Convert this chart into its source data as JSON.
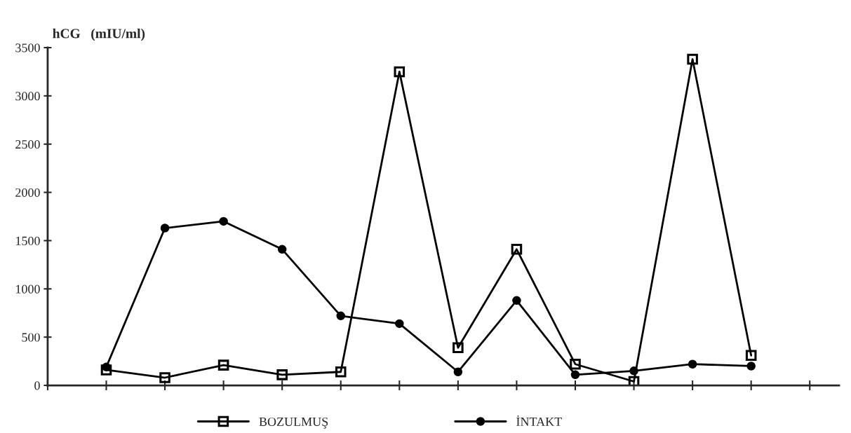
{
  "chart_data": {
    "type": "line",
    "ylabel": "hCG   (mIU/ml)",
    "categories": [
      null,
      null,
      null,
      null,
      null,
      null,
      null,
      null,
      null,
      null,
      null,
      null
    ],
    "ylim": [
      0,
      3500
    ],
    "yticks": [
      0,
      500,
      1000,
      1500,
      2000,
      2500,
      3000,
      3500
    ],
    "grid": false,
    "legend": "bottom",
    "tick_labels": "y",
    "series": [
      {
        "name": "BOZULMUŞ",
        "color": "#000000",
        "marker": "square",
        "values": [
          160,
          80,
          210,
          110,
          140,
          3250,
          390,
          1410,
          220,
          40,
          3380,
          310
        ]
      },
      {
        "name": "İNTAKT",
        "color": "#000000",
        "marker": "circle",
        "values": [
          190,
          1630,
          1700,
          1410,
          720,
          640,
          140,
          880,
          110,
          150,
          220,
          200
        ]
      }
    ]
  }
}
